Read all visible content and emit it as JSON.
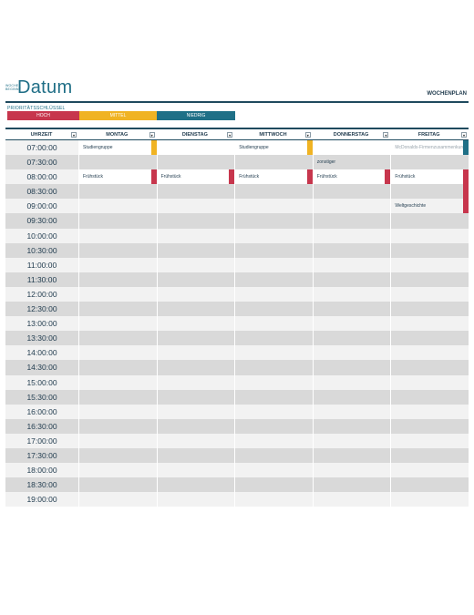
{
  "header": {
    "week_label": "WOCHE BEGINNT",
    "title": "Datum",
    "plan_label": "WOCHENPLAN"
  },
  "priority_key": {
    "label": "PRIORITÄTSSCHLÜSSEL",
    "items": [
      {
        "label": "HOCH",
        "color": "#c7364d"
      },
      {
        "label": "MITTEL",
        "color": "#f0b323"
      },
      {
        "label": "NIEDRIG",
        "color": "#1f7087"
      }
    ]
  },
  "grid": {
    "time_header": "UHRZEIT",
    "days": [
      "MONTAG",
      "DIENSTAG",
      "MITTWOCH",
      "DONNERSTAG",
      "FREITAG"
    ],
    "times": [
      "07:00:00",
      "07:30:00",
      "08:00:00",
      "08:30:00",
      "09:00:00",
      "09:30:00",
      "10:00:00",
      "10:30:00",
      "11:00:00",
      "11:30:00",
      "12:00:00",
      "12:30:00",
      "13:00:00",
      "13:30:00",
      "14:00:00",
      "14:30:00",
      "15:00:00",
      "15:30:00",
      "16:00:00",
      "16:30:00",
      "17:00:00",
      "17:30:00",
      "18:00:00",
      "18:30:00",
      "19:00:00"
    ],
    "entries": [
      {
        "row": 0,
        "day": 0,
        "text": "Studiengruppe",
        "priority": "mittel"
      },
      {
        "row": 0,
        "day": 2,
        "text": "Studiengruppe",
        "priority": "mittel"
      },
      {
        "row": 0,
        "day": 4,
        "text": "McDonalds-Firmenzusammenkunft",
        "priority": "niedrig",
        "faded": true
      },
      {
        "row": 1,
        "day": 3,
        "text": "zonstiger",
        "priority": ""
      },
      {
        "row": 2,
        "day": 0,
        "text": "Frühstück",
        "priority": "hoch"
      },
      {
        "row": 2,
        "day": 1,
        "text": "Frühstück",
        "priority": "hoch"
      },
      {
        "row": 2,
        "day": 2,
        "text": "Frühstück",
        "priority": "hoch"
      },
      {
        "row": 2,
        "day": 3,
        "text": "Frühstück",
        "priority": "hoch"
      },
      {
        "row": 2,
        "day": 4,
        "text": "Frühstück",
        "priority": "hoch"
      },
      {
        "row": 3,
        "day": 4,
        "text": "",
        "priority": "hoch"
      },
      {
        "row": 4,
        "day": 4,
        "text": "Weltgeschichte",
        "priority": "hoch"
      }
    ]
  }
}
